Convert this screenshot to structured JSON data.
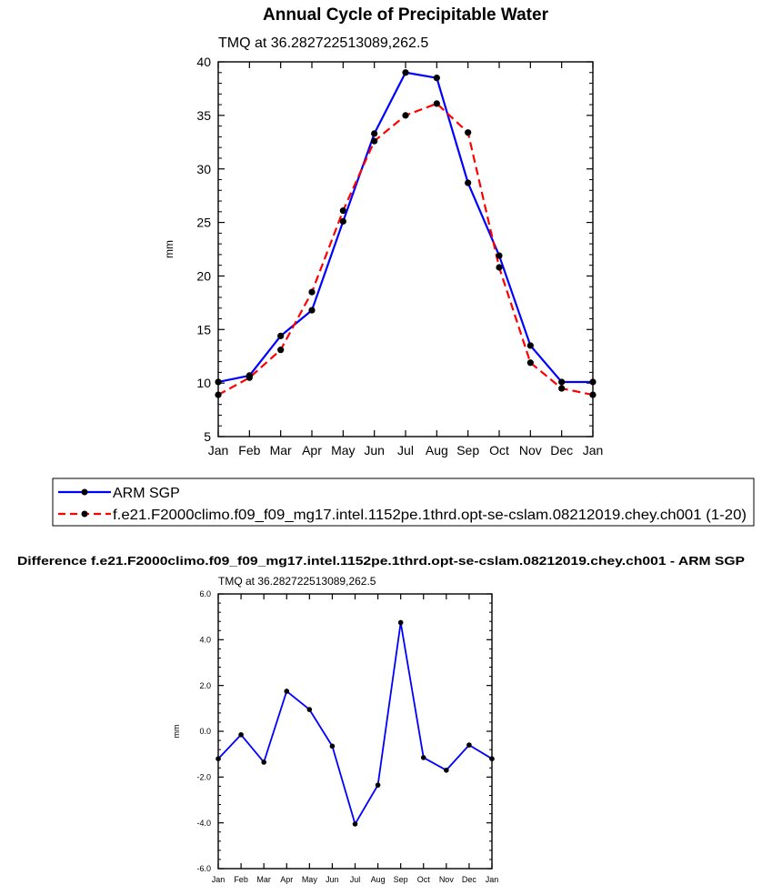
{
  "top_chart": {
    "title": "Annual Cycle of Precipitable Water",
    "subtitle": "TMQ at 36.282722513089,262.5",
    "legend": {
      "obs_label": "ARM SGP",
      "model_label": "f.e21.F2000climo.f09_f09_mg17.intel.1152pe.1thrd.opt-se-cslam.08212019.chey.ch001 (1-20)"
    }
  },
  "bottom_chart": {
    "title": "Difference f.e21.F2000climo.f09_f09_mg17.intel.1152pe.1thrd.opt-se-cslam.08212019.chey.ch001 - ARM SGP",
    "subtitle": "TMQ at 36.282722513089,262.5"
  },
  "chart_data": [
    {
      "type": "line",
      "title": "Annual Cycle of Precipitable Water",
      "subtitle": "TMQ at 36.282722513089,262.5",
      "xlabel": "",
      "ylabel": "mm",
      "categories": [
        "Jan",
        "Feb",
        "Mar",
        "Apr",
        "May",
        "Jun",
        "Jul",
        "Aug",
        "Sep",
        "Oct",
        "Nov",
        "Dec",
        "Jan"
      ],
      "ylim": [
        5,
        40
      ],
      "yticks": [
        5,
        10,
        15,
        20,
        25,
        30,
        35,
        40
      ],
      "ytick_labels": [
        "5",
        "10",
        "15",
        "20",
        "25",
        "30",
        "35",
        "40"
      ],
      "legend_position": "below",
      "series": [
        {
          "name": "ARM SGP",
          "color": "#0000ff",
          "dash": false,
          "values": [
            10.1,
            10.7,
            14.4,
            16.8,
            25.1,
            33.3,
            39.0,
            38.5,
            28.7,
            21.9,
            13.5,
            10.1,
            10.1
          ]
        },
        {
          "name": "f.e21.F2000climo.f09_f09_mg17.intel.1152pe.1thrd.opt-se-cslam.08212019.chey.ch001 (1-20)",
          "color": "#ff0000",
          "dash": true,
          "values": [
            8.9,
            10.5,
            13.1,
            18.5,
            26.1,
            32.6,
            35.0,
            36.1,
            33.4,
            20.8,
            11.9,
            9.5,
            8.9
          ]
        }
      ]
    },
    {
      "type": "line",
      "title": "Difference f.e21.F2000climo.f09_f09_mg17.intel.1152pe.1thrd.opt-se-cslam.08212019.chey.ch001 - ARM SGP",
      "subtitle": "TMQ at 36.282722513089,262.5",
      "xlabel": "",
      "ylabel": "mm",
      "categories": [
        "Jan",
        "Feb",
        "Mar",
        "Apr",
        "May",
        "Jun",
        "Jul",
        "Aug",
        "Sep",
        "Oct",
        "Nov",
        "Dec",
        "Jan"
      ],
      "ylim": [
        -6,
        6
      ],
      "yticks": [
        -6,
        -4,
        -2,
        0,
        2,
        4,
        6
      ],
      "ytick_labels": [
        "-6.0",
        "-4.0",
        "-2.0",
        "0.0",
        "2.0",
        "4.0",
        "6.0"
      ],
      "series": [
        {
          "name": "difference",
          "color": "#0000ff",
          "dash": false,
          "values": [
            -1.2,
            -0.15,
            -1.35,
            1.75,
            0.95,
            -0.65,
            -4.05,
            -2.35,
            4.75,
            -1.15,
            -1.7,
            -0.6,
            -1.2
          ]
        }
      ]
    }
  ]
}
